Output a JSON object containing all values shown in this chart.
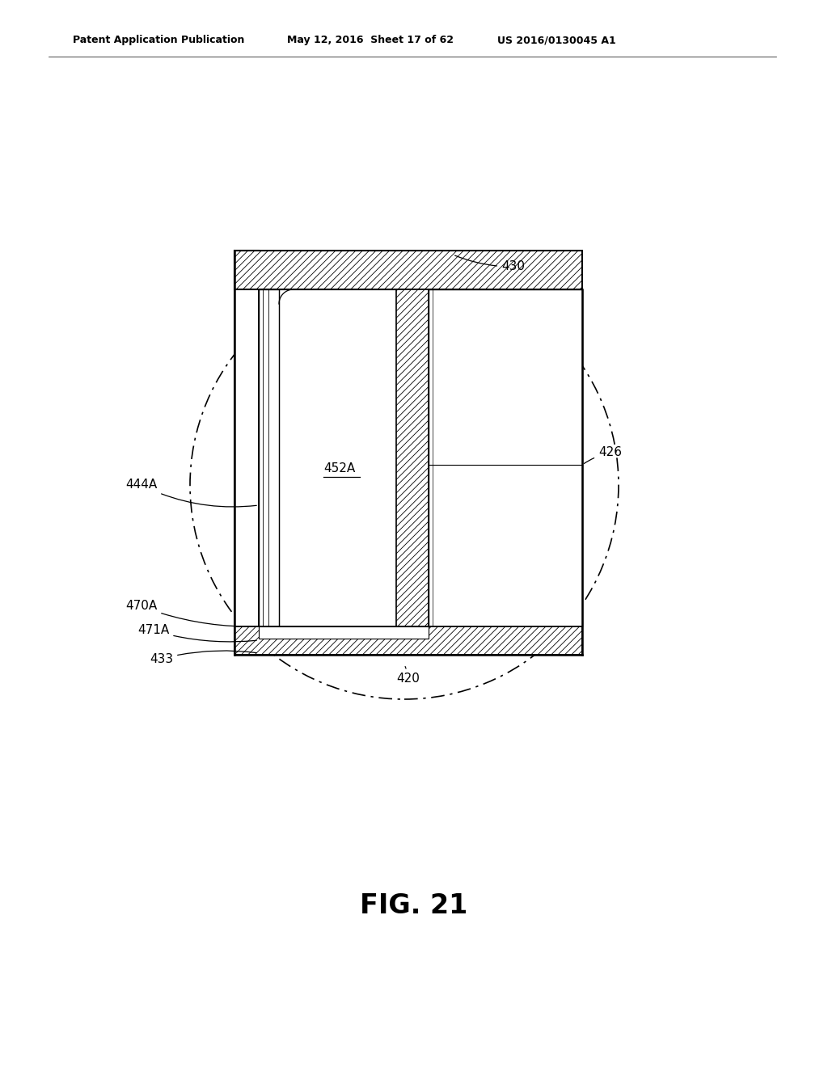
{
  "bg_color": "#ffffff",
  "header_left": "Patent Application Publication",
  "header_mid": "May 12, 2016  Sheet 17 of 62",
  "header_right": "US 2016/0130045 A1",
  "fig_label": "FIG. 21",
  "label_fs": 11,
  "header_fs": 9,
  "figsize": [
    10.24,
    13.2
  ],
  "dpi": 100
}
